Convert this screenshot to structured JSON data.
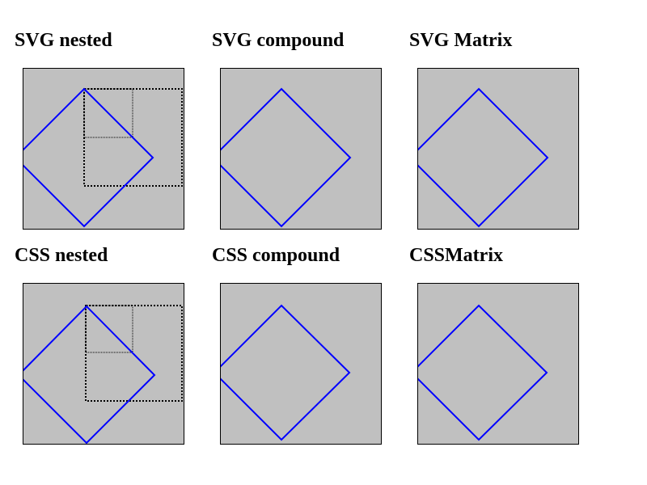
{
  "tests": {
    "svg_nested": {
      "label": "SVG nested"
    },
    "svg_compound": {
      "label": "SVG compound"
    },
    "svg_matrix": {
      "label": "SVG Matrix"
    },
    "css_nested": {
      "label": "CSS nested"
    },
    "css_compound": {
      "label": "CSS compound"
    },
    "css_matrix": {
      "label": "CSSMatrix"
    }
  },
  "colors": {
    "box_background": "#c0c0c0",
    "box_border": "#000000",
    "diamond_stroke": "#0000ff",
    "guide_stroke": "#000000"
  }
}
